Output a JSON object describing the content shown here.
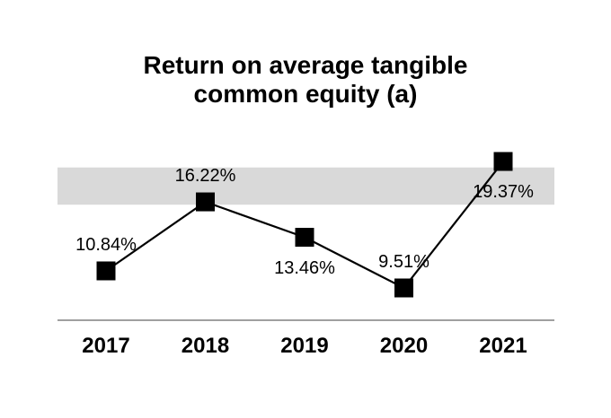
{
  "title_lines": [
    "Return on average tangible",
    "common equity (a)"
  ],
  "chart_data": {
    "type": "line",
    "title": "Return on average tangible common equity (a)",
    "categories": [
      "2017",
      "2018",
      "2019",
      "2020",
      "2021"
    ],
    "values": [
      10.84,
      16.22,
      13.46,
      9.51,
      19.37
    ],
    "point_labels": [
      "10.84%",
      "16.22%",
      "13.46%",
      "9.51%",
      "19.37%"
    ],
    "label_positions": [
      "above",
      "above",
      "below",
      "above",
      "below"
    ],
    "xlabel": "",
    "ylabel": "",
    "ylim": [
      6.9,
      21.0
    ],
    "grid": false,
    "legend": false,
    "marker": "square",
    "marker_color": "#000000",
    "line_color": "#000000",
    "axis_line_color": "#a0a0a0",
    "highlight_band": {
      "from": 16.0,
      "to": 18.9,
      "color": "#d9d9d9"
    }
  }
}
